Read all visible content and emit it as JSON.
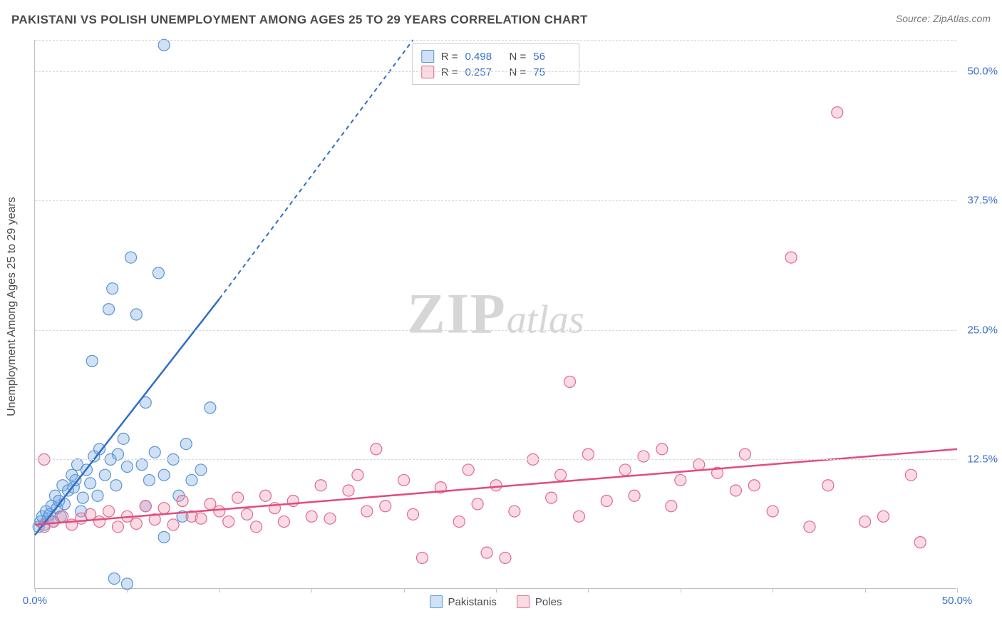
{
  "title": "PAKISTANI VS POLISH UNEMPLOYMENT AMONG AGES 25 TO 29 YEARS CORRELATION CHART",
  "source": "Source: ZipAtlas.com",
  "y_axis_label": "Unemployment Among Ages 25 to 29 years",
  "watermark_zip": "ZIP",
  "watermark_atlas": "atlas",
  "chart": {
    "type": "scatter",
    "xlim": [
      0,
      50
    ],
    "ylim": [
      0,
      53
    ],
    "x_ticks": [
      0,
      5,
      10,
      15,
      20,
      25,
      30,
      35,
      40,
      45,
      50
    ],
    "x_tick_labels": {
      "0": "0.0%",
      "50": "50.0%"
    },
    "y_gridlines": [
      12.5,
      25,
      37.5,
      50,
      53
    ],
    "y_tick_labels": {
      "12.5": "12.5%",
      "25": "25.0%",
      "37.5": "37.5%",
      "50": "50.0%"
    },
    "background_color": "#ffffff",
    "grid_color": "#d9d9d9",
    "axis_color": "#bfbfbf",
    "tick_label_color": "#3b6fc9",
    "series": [
      {
        "name": "Pakistanis",
        "marker_fill": "rgba(120,170,225,0.35)",
        "marker_stroke": "#5a94d6",
        "marker_radius": 8,
        "r": "0.498",
        "n": "56",
        "trend_color": "#2f6fc4",
        "trend_solid": {
          "x1": 0,
          "y1": 5.2,
          "x2": 10,
          "y2": 28
        },
        "trend_dashed": {
          "x1": 10,
          "y1": 28,
          "x2": 20.5,
          "y2": 53
        },
        "points": [
          [
            0.2,
            6.0
          ],
          [
            0.3,
            6.5
          ],
          [
            0.4,
            7.0
          ],
          [
            0.5,
            6.2
          ],
          [
            0.6,
            7.5
          ],
          [
            0.7,
            6.8
          ],
          [
            0.8,
            7.2
          ],
          [
            0.9,
            8.0
          ],
          [
            1.0,
            6.5
          ],
          [
            1.1,
            9.0
          ],
          [
            1.2,
            7.8
          ],
          [
            1.3,
            8.5
          ],
          [
            1.4,
            7.0
          ],
          [
            1.5,
            10.0
          ],
          [
            1.6,
            8.2
          ],
          [
            1.8,
            9.5
          ],
          [
            2.0,
            11.0
          ],
          [
            2.1,
            9.8
          ],
          [
            2.2,
            10.5
          ],
          [
            2.3,
            12.0
          ],
          [
            2.5,
            7.5
          ],
          [
            2.6,
            8.8
          ],
          [
            2.8,
            11.5
          ],
          [
            3.0,
            10.2
          ],
          [
            3.1,
            22.0
          ],
          [
            3.2,
            12.8
          ],
          [
            3.4,
            9.0
          ],
          [
            3.5,
            13.5
          ],
          [
            3.8,
            11.0
          ],
          [
            4.0,
            27.0
          ],
          [
            4.1,
            12.5
          ],
          [
            4.2,
            29.0
          ],
          [
            4.4,
            10.0
          ],
          [
            4.5,
            13.0
          ],
          [
            4.8,
            14.5
          ],
          [
            5.0,
            11.8
          ],
          [
            5.2,
            32.0
          ],
          [
            5.5,
            26.5
          ],
          [
            5.8,
            12.0
          ],
          [
            6.0,
            18.0
          ],
          [
            6.2,
            10.5
          ],
          [
            6.5,
            13.2
          ],
          [
            6.7,
            30.5
          ],
          [
            7.0,
            11.0
          ],
          [
            7.5,
            12.5
          ],
          [
            7.8,
            9.0
          ],
          [
            7.0,
            5.0
          ],
          [
            8.2,
            14.0
          ],
          [
            8.5,
            10.5
          ],
          [
            9.0,
            11.5
          ],
          [
            9.5,
            17.5
          ],
          [
            5.0,
            0.5
          ],
          [
            7.0,
            52.5
          ],
          [
            4.3,
            1.0
          ],
          [
            8.0,
            7.0
          ],
          [
            6.0,
            8.0
          ]
        ]
      },
      {
        "name": "Poles",
        "marker_fill": "rgba(240,150,175,0.35)",
        "marker_stroke": "#e06a8f",
        "marker_radius": 8,
        "r": "0.257",
        "n": "75",
        "trend_color": "#e34b7d",
        "trend_solid": {
          "x1": 0,
          "y1": 6.2,
          "x2": 50,
          "y2": 13.5
        },
        "points": [
          [
            0.5,
            6.0
          ],
          [
            1.0,
            6.5
          ],
          [
            1.5,
            7.0
          ],
          [
            2.0,
            6.2
          ],
          [
            2.5,
            6.8
          ],
          [
            3.0,
            7.2
          ],
          [
            3.5,
            6.5
          ],
          [
            4.0,
            7.5
          ],
          [
            4.5,
            6.0
          ],
          [
            5.0,
            7.0
          ],
          [
            5.5,
            6.3
          ],
          [
            6.0,
            8.0
          ],
          [
            6.5,
            6.7
          ],
          [
            7.0,
            7.8
          ],
          [
            7.5,
            6.2
          ],
          [
            8.0,
            8.5
          ],
          [
            8.5,
            7.0
          ],
          [
            9.0,
            6.8
          ],
          [
            9.5,
            8.2
          ],
          [
            10.0,
            7.5
          ],
          [
            10.5,
            6.5
          ],
          [
            11.0,
            8.8
          ],
          [
            11.5,
            7.2
          ],
          [
            12.0,
            6.0
          ],
          [
            12.5,
            9.0
          ],
          [
            13.0,
            7.8
          ],
          [
            13.5,
            6.5
          ],
          [
            14.0,
            8.5
          ],
          [
            15.0,
            7.0
          ],
          [
            15.5,
            10.0
          ],
          [
            16.0,
            6.8
          ],
          [
            17.0,
            9.5
          ],
          [
            17.5,
            11.0
          ],
          [
            18.0,
            7.5
          ],
          [
            18.5,
            13.5
          ],
          [
            19.0,
            8.0
          ],
          [
            20.0,
            10.5
          ],
          [
            20.5,
            7.2
          ],
          [
            21.0,
            3.0
          ],
          [
            22.0,
            9.8
          ],
          [
            23.0,
            6.5
          ],
          [
            23.5,
            11.5
          ],
          [
            24.0,
            8.2
          ],
          [
            24.5,
            3.5
          ],
          [
            25.0,
            10.0
          ],
          [
            25.5,
            3.0
          ],
          [
            26.0,
            7.5
          ],
          [
            27.0,
            12.5
          ],
          [
            28.0,
            8.8
          ],
          [
            28.5,
            11.0
          ],
          [
            29.0,
            20.0
          ],
          [
            29.5,
            7.0
          ],
          [
            30.0,
            13.0
          ],
          [
            31.0,
            8.5
          ],
          [
            32.0,
            11.5
          ],
          [
            32.5,
            9.0
          ],
          [
            33.0,
            12.8
          ],
          [
            34.0,
            13.5
          ],
          [
            34.5,
            8.0
          ],
          [
            35.0,
            10.5
          ],
          [
            36.0,
            12.0
          ],
          [
            37.0,
            11.2
          ],
          [
            38.0,
            9.5
          ],
          [
            38.5,
            13.0
          ],
          [
            39.0,
            10.0
          ],
          [
            40.0,
            7.5
          ],
          [
            41.0,
            32.0
          ],
          [
            42.0,
            6.0
          ],
          [
            43.0,
            10.0
          ],
          [
            43.5,
            46.0
          ],
          [
            45.0,
            6.5
          ],
          [
            46.0,
            7.0
          ],
          [
            47.5,
            11.0
          ],
          [
            48.0,
            4.5
          ],
          [
            0.5,
            12.5
          ]
        ]
      }
    ]
  },
  "legend_top": [
    {
      "swatch_fill": "rgba(120,170,225,0.35)",
      "swatch_border": "#5a94d6",
      "r_label": "R =",
      "r_value": "0.498",
      "n_label": "N =",
      "n_value": "56"
    },
    {
      "swatch_fill": "rgba(240,150,175,0.35)",
      "swatch_border": "#e06a8f",
      "r_label": "R =",
      "r_value": "0.257",
      "n_label": "N =",
      "n_value": "75"
    }
  ],
  "legend_bottom": [
    {
      "swatch_fill": "rgba(120,170,225,0.35)",
      "swatch_border": "#5a94d6",
      "label": "Pakistanis"
    },
    {
      "swatch_fill": "rgba(240,150,175,0.35)",
      "swatch_border": "#e06a8f",
      "label": "Poles"
    }
  ]
}
